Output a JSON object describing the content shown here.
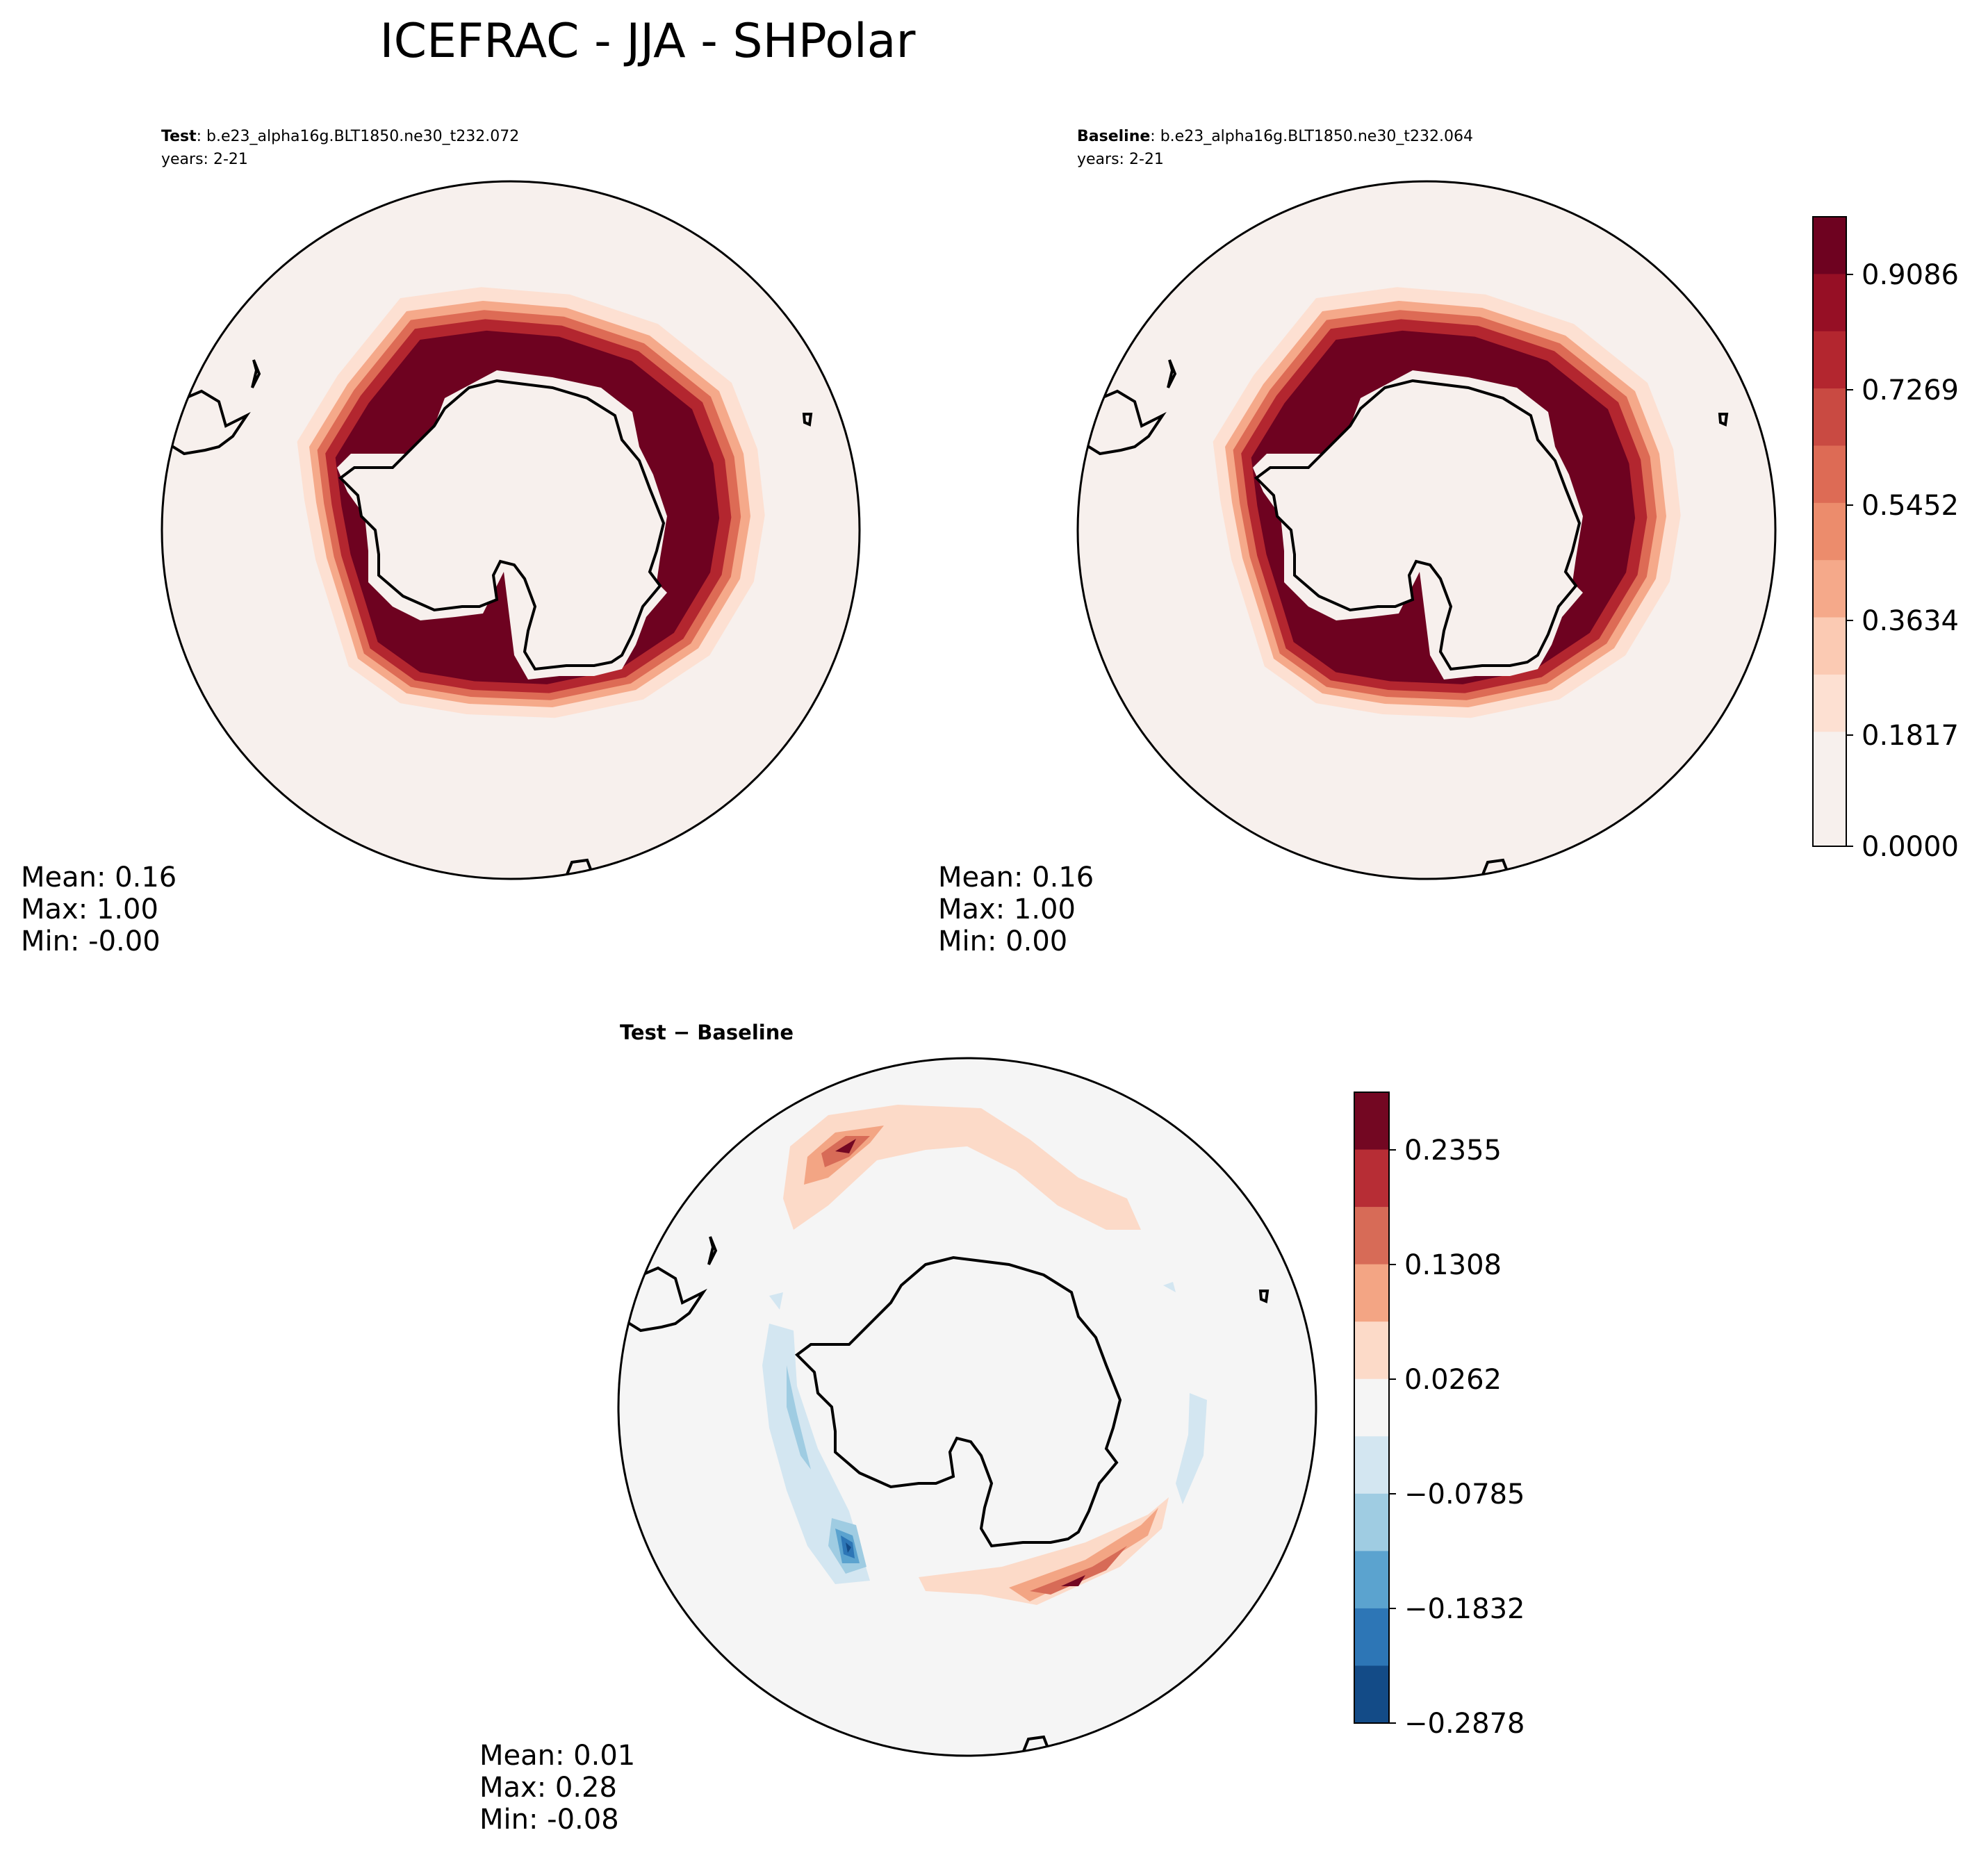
{
  "title": "ICEFRAC - JJA - SHPolar",
  "panels": [
    {
      "header_bold": "Test",
      "header_text": ": b.e23_alpha16g.BLT1850.ne30_t232.072",
      "years": "years: 2-21",
      "stats": {
        "mean": "Mean:  0.16",
        "max": "Max:  1.00",
        "min": "Min: -0.00"
      }
    },
    {
      "header_bold": "Baseline",
      "header_text": ": b.e23_alpha16g.BLT1850.ne30_t232.064",
      "years": "years: 2-21",
      "stats": {
        "mean": "Mean:  0.16",
        "max": "Max:  1.00",
        "min": "Min:  0.00"
      }
    },
    {
      "header_bold": "Test − Baseline",
      "stats": {
        "mean": "Mean:  0.01",
        "max": "Max:  0.28",
        "min": "Min: -0.08"
      }
    }
  ],
  "chart_data": [
    {
      "type": "heatmap",
      "name": "Test",
      "projection": "south-polar-stereographic",
      "colormap": "RdBu_r (sequential, upper half)",
      "level_colors": [
        "#f7f0ed",
        "#fde0d2",
        "#fbcab3",
        "#f5a98a",
        "#ec8c6c",
        "#dd6b55",
        "#c94a42",
        "#b3262f",
        "#960f25",
        "#6e0220"
      ],
      "description": "Sea-ice fraction ring around Antarctica; ~1.0 near coast, 0 over open ocean",
      "mean": 0.16,
      "max": 1.0,
      "min": -0.0
    },
    {
      "type": "heatmap",
      "name": "Baseline",
      "projection": "south-polar-stereographic",
      "mean": 0.16,
      "max": 1.0,
      "min": 0.0
    },
    {
      "type": "heatmap",
      "name": "Test − Baseline",
      "projection": "south-polar-stereographic",
      "colormap": "RdBu_r (diverging)",
      "level_colors": [
        "#134b87",
        "#2d76b6",
        "#5ba3cf",
        "#9fcce2",
        "#d3e6f1",
        "#f5f5f5",
        "#fcdac8",
        "#f3a584",
        "#d76b57",
        "#b72d35",
        "#730722"
      ],
      "mean": 0.01,
      "max": 0.28,
      "min": -0.08
    }
  ],
  "colorbars": {
    "main": {
      "ticks": [
        "0.9086",
        "0.7269",
        "0.5452",
        "0.3634",
        "0.1817",
        "0.0000"
      ]
    },
    "diff": {
      "ticks": [
        "0.2355",
        "0.1308",
        "0.0262",
        "−0.0785",
        "−0.1832",
        "−0.2878"
      ]
    }
  }
}
